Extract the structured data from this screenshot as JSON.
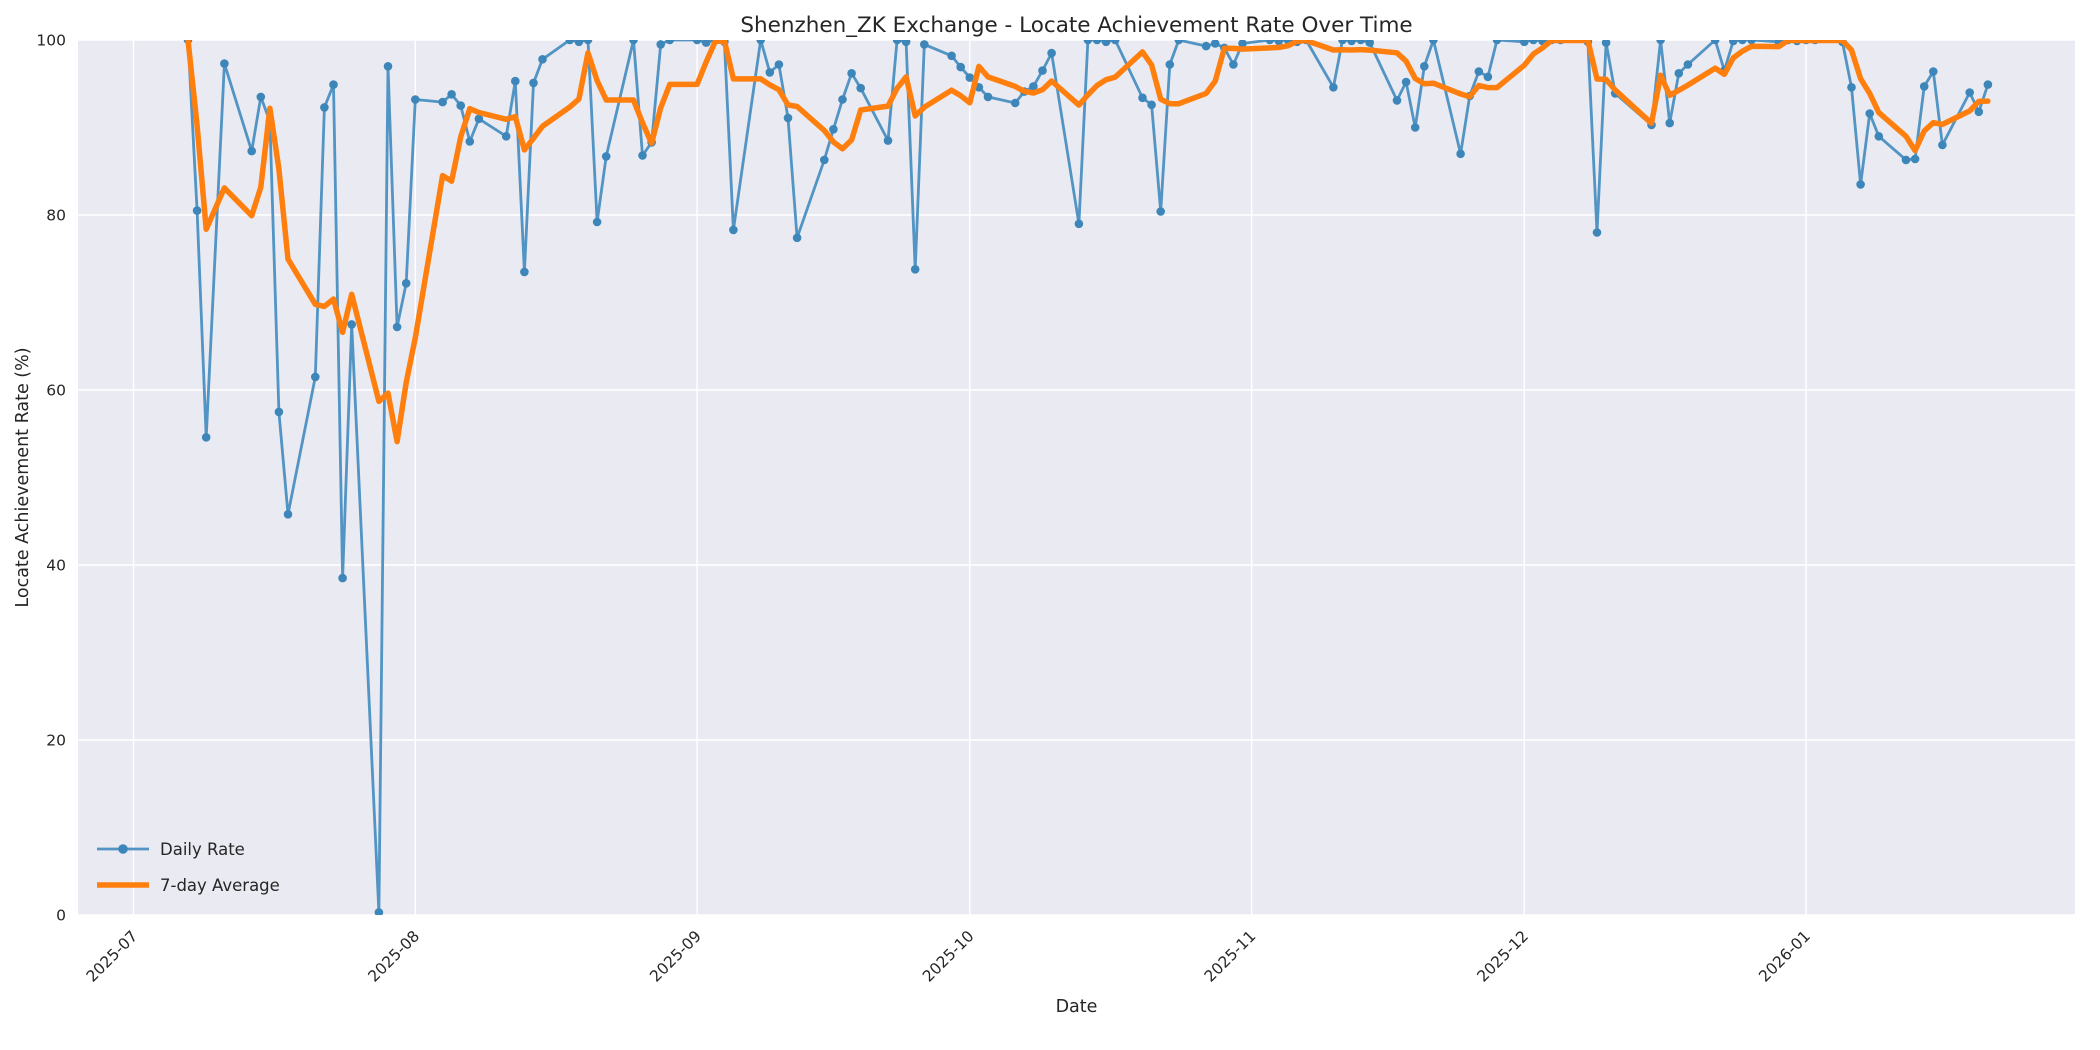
{
  "chart_data": {
    "type": "line",
    "title": "Shenzhen_ZK Exchange - Locate Achievement Rate Over Time",
    "xlabel": "Date",
    "ylabel": "Locate Achievement Rate (%)",
    "ylim": [
      0,
      100
    ],
    "yticks": [
      0,
      20,
      40,
      60,
      80,
      100
    ],
    "xtick_labels": [
      "2025-07",
      "2025-08",
      "2025-09",
      "2025-10",
      "2025-11",
      "2025-12",
      "2026-01"
    ],
    "xtick_dates": [
      "2025-07-01",
      "2025-08-01",
      "2025-09-01",
      "2025-10-01",
      "2025-11-01",
      "2025-12-01",
      "2026-01-01"
    ],
    "grid": true,
    "legend_position": "lower left",
    "series": [
      {
        "name": "Daily Rate",
        "type": "line+marker",
        "rolling": null,
        "points": [
          [
            "2025-07-07",
            100
          ],
          [
            "2025-07-08",
            80.5
          ],
          [
            "2025-07-09",
            54.6
          ],
          [
            "2025-07-11",
            97.3
          ],
          [
            "2025-07-14",
            87.3
          ],
          [
            "2025-07-15",
            93.5
          ],
          [
            "2025-07-16",
            90.7
          ],
          [
            "2025-07-17",
            57.5
          ],
          [
            "2025-07-18",
            45.8
          ],
          [
            "2025-07-21",
            61.5
          ],
          [
            "2025-07-22",
            92.3
          ],
          [
            "2025-07-23",
            94.9
          ],
          [
            "2025-07-24",
            38.5
          ],
          [
            "2025-07-25",
            67.5
          ],
          [
            "2025-07-28",
            0.3
          ],
          [
            "2025-07-29",
            97.0
          ],
          [
            "2025-07-30",
            67.2
          ],
          [
            "2025-07-31",
            72.2
          ],
          [
            "2025-08-01",
            93.2
          ],
          [
            "2025-08-04",
            92.9
          ],
          [
            "2025-08-05",
            93.8
          ],
          [
            "2025-08-06",
            92.5
          ],
          [
            "2025-08-07",
            88.4
          ],
          [
            "2025-08-08",
            91.0
          ],
          [
            "2025-08-11",
            89.0
          ],
          [
            "2025-08-12",
            95.3
          ],
          [
            "2025-08-13",
            73.5
          ],
          [
            "2025-08-14",
            95.1
          ],
          [
            "2025-08-15",
            97.8
          ],
          [
            "2025-08-18",
            100
          ],
          [
            "2025-08-19",
            99.8
          ],
          [
            "2025-08-20",
            100
          ],
          [
            "2025-08-21",
            79.2
          ],
          [
            "2025-08-22",
            86.7
          ],
          [
            "2025-08-25",
            100
          ],
          [
            "2025-08-26",
            86.8
          ],
          [
            "2025-08-27",
            88.3
          ],
          [
            "2025-08-28",
            99.5
          ],
          [
            "2025-08-29",
            100
          ],
          [
            "2025-09-01",
            100
          ],
          [
            "2025-09-02",
            99.7
          ],
          [
            "2025-09-03",
            100
          ],
          [
            "2025-09-04",
            99.8
          ],
          [
            "2025-09-05",
            78.3
          ],
          [
            "2025-09-08",
            100
          ],
          [
            "2025-09-09",
            96.3
          ],
          [
            "2025-09-10",
            97.2
          ],
          [
            "2025-09-11",
            91.1
          ],
          [
            "2025-09-12",
            77.4
          ],
          [
            "2025-09-15",
            86.3
          ],
          [
            "2025-09-16",
            89.8
          ],
          [
            "2025-09-17",
            93.2
          ],
          [
            "2025-09-18",
            96.2
          ],
          [
            "2025-09-19",
            94.5
          ],
          [
            "2025-09-22",
            88.5
          ],
          [
            "2025-09-23",
            100
          ],
          [
            "2025-09-24",
            99.8
          ],
          [
            "2025-09-25",
            73.8
          ],
          [
            "2025-09-26",
            99.5
          ],
          [
            "2025-09-29",
            98.2
          ],
          [
            "2025-09-30",
            96.9
          ],
          [
            "2025-10-01",
            95.7
          ],
          [
            "2025-10-02",
            94.6
          ],
          [
            "2025-10-03",
            93.5
          ],
          [
            "2025-10-06",
            92.8
          ],
          [
            "2025-10-07",
            94.1
          ],
          [
            "2025-10-08",
            94.7
          ],
          [
            "2025-10-09",
            96.5
          ],
          [
            "2025-10-10",
            98.5
          ],
          [
            "2025-10-13",
            79.0
          ],
          [
            "2025-10-14",
            100
          ],
          [
            "2025-10-15",
            100
          ],
          [
            "2025-10-16",
            99.8
          ],
          [
            "2025-10-17",
            100
          ],
          [
            "2025-10-20",
            93.4
          ],
          [
            "2025-10-21",
            92.6
          ],
          [
            "2025-10-22",
            80.4
          ],
          [
            "2025-10-23",
            97.2
          ],
          [
            "2025-10-24",
            100
          ],
          [
            "2025-10-27",
            99.3
          ],
          [
            "2025-10-28",
            99.6
          ],
          [
            "2025-10-29",
            99.1
          ],
          [
            "2025-10-30",
            97.2
          ],
          [
            "2025-10-31",
            99.6
          ],
          [
            "2025-11-03",
            100
          ],
          [
            "2025-11-04",
            99.9
          ],
          [
            "2025-11-05",
            100
          ],
          [
            "2025-11-06",
            99.8
          ],
          [
            "2025-11-07",
            100
          ],
          [
            "2025-11-10",
            94.6
          ],
          [
            "2025-11-11",
            100
          ],
          [
            "2025-11-12",
            99.9
          ],
          [
            "2025-11-13",
            100
          ],
          [
            "2025-11-14",
            99.7
          ],
          [
            "2025-11-17",
            93.1
          ],
          [
            "2025-11-18",
            95.2
          ],
          [
            "2025-11-19",
            90.0
          ],
          [
            "2025-11-20",
            97.0
          ],
          [
            "2025-11-21",
            100
          ],
          [
            "2025-11-24",
            87.0
          ],
          [
            "2025-11-25",
            93.6
          ],
          [
            "2025-11-26",
            96.4
          ],
          [
            "2025-11-27",
            95.8
          ],
          [
            "2025-11-28",
            100
          ],
          [
            "2025-12-01",
            99.8
          ],
          [
            "2025-12-02",
            100
          ],
          [
            "2025-12-03",
            99.9
          ],
          [
            "2025-12-04",
            100
          ],
          [
            "2025-12-05",
            100
          ],
          [
            "2025-12-08",
            99.8
          ],
          [
            "2025-12-09",
            78.0
          ],
          [
            "2025-12-10",
            99.7
          ],
          [
            "2025-12-11",
            93.9
          ],
          [
            "2025-12-15",
            90.3
          ],
          [
            "2025-12-16",
            100
          ],
          [
            "2025-12-17",
            90.5
          ],
          [
            "2025-12-18",
            96.2
          ],
          [
            "2025-12-19",
            97.2
          ],
          [
            "2025-12-22",
            100
          ],
          [
            "2025-12-23",
            96.5
          ],
          [
            "2025-12-24",
            99.9
          ],
          [
            "2025-12-25",
            100
          ],
          [
            "2025-12-26",
            100
          ],
          [
            "2025-12-29",
            99.8
          ],
          [
            "2025-12-30",
            100
          ],
          [
            "2025-12-31",
            99.9
          ],
          [
            "2026-01-01",
            100
          ],
          [
            "2026-01-02",
            100
          ],
          [
            "2026-01-05",
            99.8
          ],
          [
            "2026-01-06",
            94.6
          ],
          [
            "2026-01-07",
            83.5
          ],
          [
            "2026-01-08",
            91.6
          ],
          [
            "2026-01-09",
            89.0
          ],
          [
            "2026-01-12",
            86.3
          ],
          [
            "2026-01-13",
            86.4
          ],
          [
            "2026-01-14",
            94.7
          ],
          [
            "2026-01-15",
            96.4
          ],
          [
            "2026-01-16",
            88.0
          ],
          [
            "2026-01-19",
            94.0
          ],
          [
            "2026-01-20",
            91.8
          ],
          [
            "2026-01-21",
            94.9
          ]
        ]
      },
      {
        "name": "7-day Average",
        "type": "line",
        "rolling": {
          "window_days": 7,
          "of_series": "Daily Rate"
        }
      }
    ]
  },
  "colors": {
    "daily_rate_line": "#5294c3",
    "daily_rate_marker": "#3d86ba",
    "seven_day_average": "#ff7f0e",
    "plot_background": "#eaeaf2",
    "figure_background": "#ffffff",
    "grid": "#ffffff",
    "text": "#262626"
  }
}
